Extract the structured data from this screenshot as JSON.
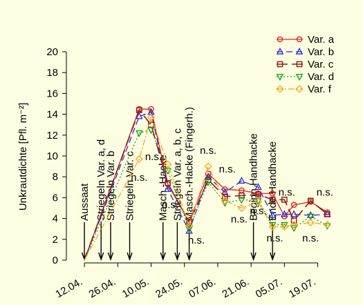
{
  "colors": {
    "background": "#fdfde1",
    "var_a": "#e3231c",
    "var_b": "#2a2ad8",
    "var_c": "#8b1a1a",
    "var_d": "#1aa01a",
    "var_f": "#f5a623",
    "black": "#000000"
  },
  "chart_data": {
    "type": "line",
    "ylabel": "Unkrautdichte [Pfl. m⁻²]",
    "xlabel": "",
    "ylim": [
      0,
      20
    ],
    "yticks": [
      0,
      2,
      4,
      6,
      8,
      10,
      12,
      14,
      16,
      18,
      20
    ],
    "x_axis_type": "date",
    "xlim": [
      "2012-04-05",
      "2012-07-29"
    ],
    "xticks": [
      {
        "date": "2012-04-12",
        "label": "12.04."
      },
      {
        "date": "2012-04-26",
        "label": "26.04."
      },
      {
        "date": "2012-05-10",
        "label": "10.05."
      },
      {
        "date": "2012-05-24",
        "label": "24.05."
      },
      {
        "date": "2012-06-07",
        "label": "07.06."
      },
      {
        "date": "2012-06-21",
        "label": "21.06."
      },
      {
        "date": "2012-07-05",
        "label": "05.07."
      },
      {
        "date": "2012-07-19",
        "label": "19.07."
      }
    ],
    "legend_position": "top-right",
    "series": [
      {
        "name": "Var. a",
        "color": "#e3231c",
        "dash": "solid",
        "marker": "circle",
        "points": [
          [
            "2012-04-12",
            0
          ],
          [
            "2012-05-05",
            14.5
          ],
          [
            "2012-05-10",
            14.5
          ],
          [
            "2012-05-17",
            7.3
          ],
          [
            "2012-05-26",
            3.7
          ],
          [
            "2012-06-03",
            8.3
          ],
          [
            "2012-06-10",
            6.8
          ],
          [
            "2012-06-17",
            6.7
          ],
          [
            "2012-06-24",
            6.4
          ],
          [
            "2012-06-30",
            6.4
          ],
          [
            "2012-07-05",
            4.2
          ],
          [
            "2012-07-09",
            5.3
          ],
          [
            "2012-07-16",
            5.6
          ],
          [
            "2012-07-23",
            4.6
          ]
        ]
      },
      {
        "name": "Var. b",
        "color": "#2a2ad8",
        "dash": "dashed",
        "marker": "triangle-up",
        "points": [
          [
            "2012-04-12",
            0
          ],
          [
            "2012-05-05",
            13.8
          ],
          [
            "2012-05-10",
            14.2
          ],
          [
            "2012-05-17",
            6.8
          ],
          [
            "2012-05-26",
            2.8
          ],
          [
            "2012-06-03",
            8.0
          ],
          [
            "2012-06-10",
            6.5
          ],
          [
            "2012-06-17",
            7.6
          ],
          [
            "2012-06-24",
            7.0
          ],
          [
            "2012-06-30",
            4.3
          ],
          [
            "2012-07-05",
            4.4
          ],
          [
            "2012-07-09",
            4.4
          ],
          [
            "2012-07-16",
            4.3
          ],
          [
            "2012-07-23",
            4.4
          ]
        ]
      },
      {
        "name": "Var. c",
        "color": "#8b1a1a",
        "dash": "longdash",
        "marker": "square",
        "points": [
          [
            "2012-04-12",
            0
          ],
          [
            "2012-05-05",
            14.4
          ],
          [
            "2012-05-10",
            13.0
          ],
          [
            "2012-05-17",
            7.4
          ],
          [
            "2012-05-26",
            3.6
          ],
          [
            "2012-06-03",
            7.7
          ],
          [
            "2012-06-10",
            6.1
          ],
          [
            "2012-06-17",
            6.2
          ],
          [
            "2012-06-24",
            6.3
          ],
          [
            "2012-06-30",
            5.8
          ],
          [
            "2012-07-05",
            5.8
          ],
          [
            "2012-07-09",
            3.8
          ],
          [
            "2012-07-16",
            5.7
          ],
          [
            "2012-07-23",
            4.4
          ]
        ]
      },
      {
        "name": "Var. d",
        "color": "#1aa01a",
        "dash": "dotted",
        "marker": "triangle-down",
        "points": [
          [
            "2012-04-12",
            0
          ],
          [
            "2012-05-05",
            12.2
          ],
          [
            "2012-05-10",
            12.5
          ],
          [
            "2012-05-17",
            8.6
          ],
          [
            "2012-05-26",
            3.0
          ],
          [
            "2012-06-03",
            7.5
          ],
          [
            "2012-06-10",
            5.5
          ],
          [
            "2012-06-17",
            5.8
          ],
          [
            "2012-06-24",
            5.7
          ],
          [
            "2012-06-30",
            3.4
          ],
          [
            "2012-07-05",
            3.4
          ],
          [
            "2012-07-09",
            3.1
          ],
          [
            "2012-07-16",
            4.2
          ],
          [
            "2012-07-23",
            3.3
          ]
        ]
      },
      {
        "name": "Var. f",
        "color": "#f5a623",
        "dash": "dashdot",
        "marker": "diamond",
        "points": [
          [
            "2012-04-12",
            0
          ],
          [
            "2012-05-05",
            9.7
          ],
          [
            "2012-05-10",
            13.7
          ],
          [
            "2012-05-17",
            9.2
          ],
          [
            "2012-05-26",
            3.3
          ],
          [
            "2012-06-03",
            9.0
          ],
          [
            "2012-06-10",
            5.7
          ],
          [
            "2012-06-17",
            5.0
          ],
          [
            "2012-06-24",
            5.6
          ],
          [
            "2012-06-30",
            3.2
          ],
          [
            "2012-07-05",
            3.2
          ],
          [
            "2012-07-09",
            3.4
          ],
          [
            "2012-07-16",
            3.6
          ],
          [
            "2012-07-23",
            3.4
          ]
        ]
      }
    ],
    "events": [
      {
        "date": "2012-04-12",
        "label": "Aussaat"
      },
      {
        "date": "2012-04-19",
        "label": "Striegeln Var. a, d"
      },
      {
        "date": "2012-04-23",
        "label": "Striegeln Var. b"
      },
      {
        "date": "2012-05-01",
        "label": "Striegeln Var. c"
      },
      {
        "date": "2012-05-15",
        "label": "Masch.-Hacke"
      },
      {
        "date": "2012-05-21",
        "label": "Striegeln Var. a, b, c"
      },
      {
        "date": "2012-05-26",
        "label": "Masch.-Hacke (Fingerh.)"
      },
      {
        "date": "2012-06-22",
        "label": "Beginn Handhacke"
      },
      {
        "date": "2012-06-30",
        "label": "Ende Handhacke"
      }
    ],
    "annotations": [
      {
        "label": "n.s.",
        "date": "2012-05-11",
        "y": 9.6
      },
      {
        "label": "n.s.",
        "date": "2012-05-05",
        "y": 7.6
      },
      {
        "label": "n.s.",
        "date": "2012-05-18",
        "y": 5.0
      },
      {
        "label": "n.s.",
        "date": "2012-05-29",
        "y": 1.6
      },
      {
        "label": "n.s.",
        "date": "2012-06-03",
        "y": 10.2
      },
      {
        "label": "n.s.",
        "date": "2012-06-11",
        "y": 8.4
      },
      {
        "label": "n.s.",
        "date": "2012-06-16",
        "y": 3.6
      },
      {
        "label": "n.s.",
        "date": "2012-06-24",
        "y": 4.4
      },
      {
        "label": "n.s.",
        "date": "2012-07-06",
        "y": 6.2
      },
      {
        "label": "n.s.",
        "date": "2012-07-01",
        "y": 1.8
      },
      {
        "label": "n.s.",
        "date": "2012-07-16",
        "y": 1.8
      },
      {
        "label": "n.s.",
        "date": "2012-07-22",
        "y": 6.2
      }
    ]
  }
}
